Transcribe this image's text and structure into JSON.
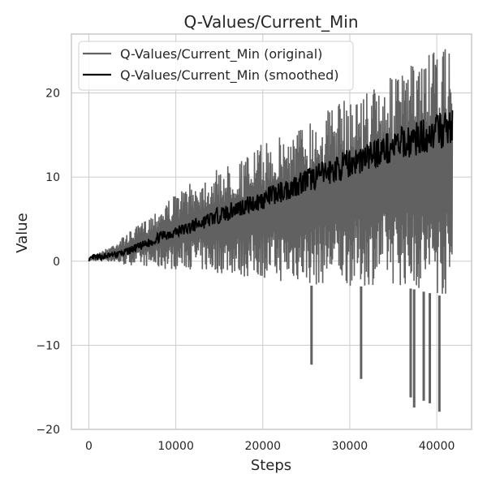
{
  "chart_data": {
    "type": "line",
    "title": "Q-Values/Current_Min",
    "xlabel": "Steps",
    "ylabel": "Value",
    "xlim": [
      -2000,
      44000
    ],
    "ylim": [
      -20,
      27
    ],
    "x_ticks": [
      0,
      10000,
      20000,
      30000,
      40000
    ],
    "x_tick_labels": [
      "0",
      "10000",
      "20000",
      "30000",
      "40000"
    ],
    "y_ticks": [
      -20,
      -10,
      0,
      10,
      20
    ],
    "y_tick_labels": [
      "−20",
      "−10",
      "0",
      "10",
      "20"
    ],
    "grid": true,
    "legend_position": "top-left",
    "series": [
      {
        "name": "Q-Values/Current_Min (original)",
        "color": "#616161",
        "style": "band",
        "x": [
          0,
          2000,
          4000,
          6000,
          8000,
          10000,
          12000,
          14000,
          16000,
          18000,
          20000,
          22000,
          24000,
          26000,
          28000,
          30000,
          32000,
          34000,
          36000,
          38000,
          40000,
          41800
        ],
        "upper": [
          0.4,
          1.5,
          3.0,
          4.5,
          6.5,
          8.0,
          9.5,
          10.5,
          11.5,
          12.5,
          14.0,
          15.0,
          16.0,
          17.5,
          18.5,
          19.5,
          20.5,
          21.5,
          22.5,
          24.0,
          25.0,
          25.5
        ],
        "lower": [
          0.0,
          0.0,
          -0.5,
          -0.5,
          -1.0,
          -1.0,
          -1.0,
          -1.5,
          -1.5,
          -2.0,
          -2.0,
          -2.5,
          -2.5,
          -3.0,
          -2.5,
          -3.0,
          -3.0,
          -2.5,
          -3.0,
          -3.5,
          -4.0,
          -4.5
        ],
        "spikes": [
          {
            "x": 25600,
            "y": -12.3
          },
          {
            "x": 31300,
            "y": -14.0
          },
          {
            "x": 37000,
            "y": -16.2
          },
          {
            "x": 37400,
            "y": -17.4
          },
          {
            "x": 38500,
            "y": -16.6
          },
          {
            "x": 39200,
            "y": -16.9
          },
          {
            "x": 40300,
            "y": -17.9
          }
        ]
      },
      {
        "name": "Q-Values/Current_Min (smoothed)",
        "color": "#000000",
        "style": "line",
        "x": [
          0,
          500,
          1000,
          2000,
          3000,
          4000,
          5000,
          6000,
          7000,
          8000,
          9000,
          10000,
          11000,
          12000,
          13000,
          14000,
          15000,
          16000,
          17000,
          18000,
          19000,
          20000,
          21000,
          22000,
          23000,
          24000,
          25000,
          26000,
          27000,
          28000,
          29000,
          30000,
          31000,
          32000,
          33000,
          34000,
          35000,
          36000,
          37000,
          38000,
          39000,
          40000,
          41000,
          41800
        ],
        "y": [
          0.0,
          0.5,
          0.4,
          0.6,
          0.8,
          1.0,
          1.4,
          1.8,
          2.2,
          2.8,
          3.2,
          3.5,
          3.8,
          4.2,
          4.6,
          5.0,
          5.5,
          5.8,
          6.3,
          6.6,
          6.9,
          7.3,
          7.8,
          8.2,
          8.6,
          9.2,
          9.6,
          10.0,
          10.4,
          10.8,
          11.2,
          11.7,
          12.0,
          12.4,
          12.9,
          13.3,
          13.6,
          14.0,
          14.3,
          14.7,
          15.0,
          15.4,
          15.7,
          16.0
        ]
      }
    ]
  }
}
